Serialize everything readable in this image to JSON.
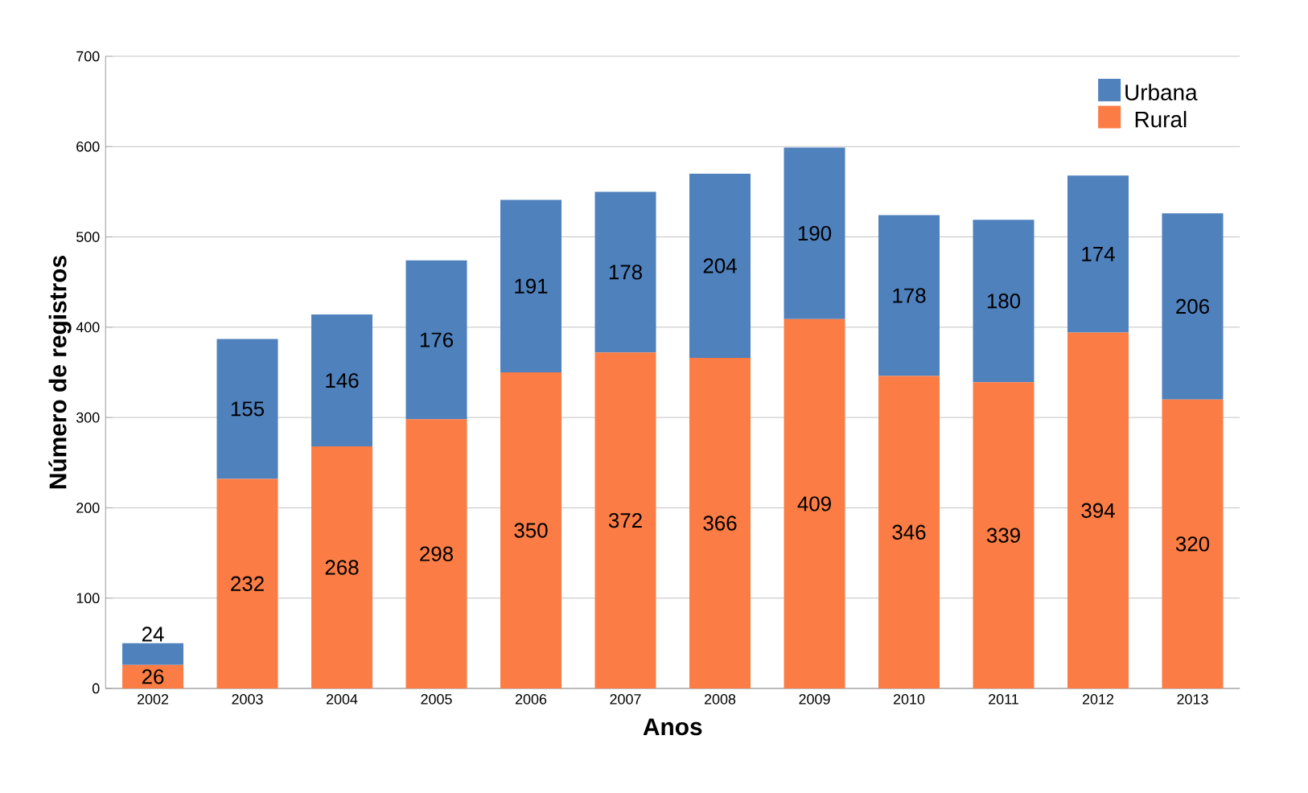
{
  "chart_data": {
    "type": "bar",
    "stacked": true,
    "xlabel": "Anos",
    "ylabel": "Número de registros",
    "categories": [
      "2002",
      "2003",
      "2004",
      "2005",
      "2006",
      "2007",
      "2008",
      "2009",
      "2010",
      "2011",
      "2012",
      "2013"
    ],
    "series": [
      {
        "name": "Rural",
        "color": "#fb7d45",
        "values": [
          26,
          232,
          268,
          298,
          350,
          372,
          366,
          409,
          346,
          339,
          394,
          320
        ]
      },
      {
        "name": "Urbana",
        "color": "#4f81bd",
        "values": [
          24,
          155,
          146,
          176,
          191,
          178,
          204,
          190,
          178,
          180,
          174,
          206
        ]
      }
    ],
    "ylim": [
      0,
      700
    ],
    "yticks": [
      0,
      100,
      200,
      300,
      400,
      500,
      600,
      700
    ],
    "grid": "y",
    "legend": "top right",
    "data_labels": true
  }
}
